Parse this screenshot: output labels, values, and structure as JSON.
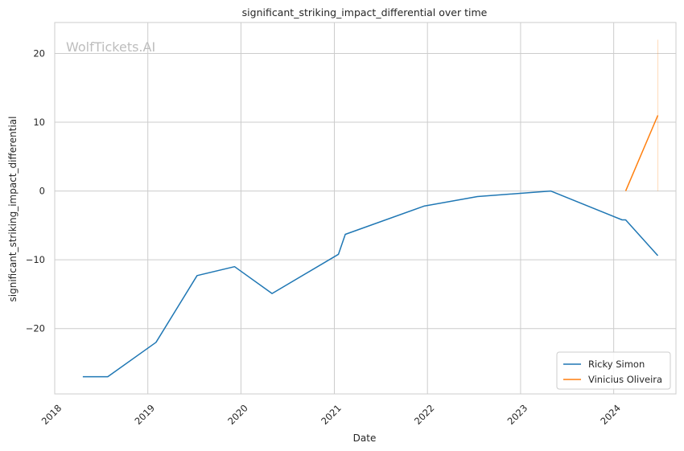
{
  "chart_data": {
    "type": "line",
    "title": "significant_striking_impact_differential over time",
    "xlabel": "Date",
    "ylabel": "significant_striking_impact_differential",
    "watermark": "WolfTickets.AI",
    "x_ticks": [
      "2018",
      "2019",
      "2020",
      "2021",
      "2022",
      "2023",
      "2024"
    ],
    "y_ticks": [
      20,
      10,
      0,
      -10,
      -20
    ],
    "y_tick_labels": [
      "20",
      "10",
      "0",
      "−10",
      "−20"
    ],
    "xlim": [
      "2018-01-01",
      "2024-09-01"
    ],
    "ylim": [
      -29.5,
      24.5
    ],
    "grid": true,
    "legend_position": "lower-right",
    "series": [
      {
        "name": "Ricky Simon",
        "color": "#1f77b4",
        "points": [
          {
            "x": "2018-04-21",
            "y": -27.0
          },
          {
            "x": "2018-07-28",
            "y": -27.0
          },
          {
            "x": "2019-02-02",
            "y": -22.0
          },
          {
            "x": "2019-07-13",
            "y": -12.3
          },
          {
            "x": "2019-12-07",
            "y": -11.0
          },
          {
            "x": "2020-05-02",
            "y": -14.9
          },
          {
            "x": "2021-01-17",
            "y": -9.2
          },
          {
            "x": "2021-02-13",
            "y": -6.3
          },
          {
            "x": "2021-12-18",
            "y": -2.2
          },
          {
            "x": "2022-07-16",
            "y": -0.8
          },
          {
            "x": "2023-04-29",
            "y": 0.0
          },
          {
            "x": "2024-02-03",
            "y": -4.2
          },
          {
            "x": "2024-02-17",
            "y": -4.2
          },
          {
            "x": "2024-06-22",
            "y": -9.4
          }
        ]
      },
      {
        "name": "Vinicius Oliveira",
        "color": "#ff7f0e",
        "points": [
          {
            "x": "2024-02-17",
            "y": 0.0
          },
          {
            "x": "2024-06-22",
            "y": 11.0
          }
        ],
        "band": {
          "x": "2024-06-22",
          "y_low": 0.0,
          "y_high": 22.0
        }
      }
    ]
  }
}
